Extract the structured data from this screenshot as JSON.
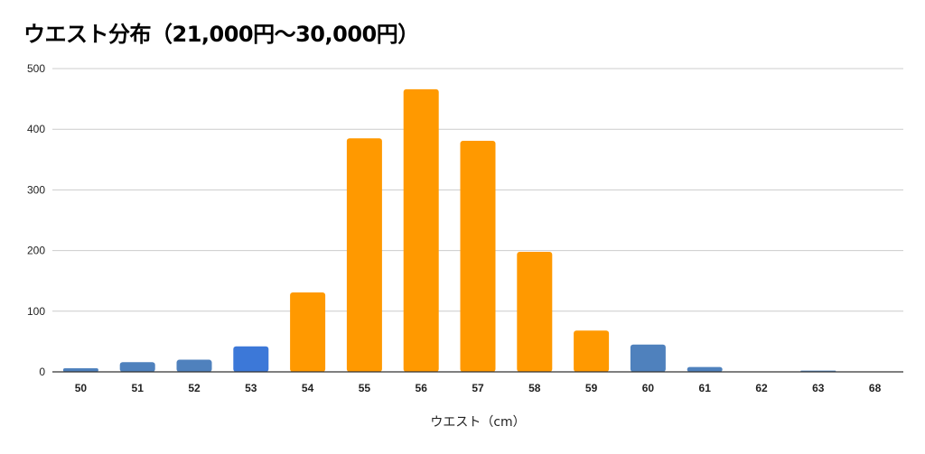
{
  "chart_data": {
    "type": "bar",
    "title": "ウエスト分布（21,000円〜30,000円）",
    "xlabel": "ウエスト（cm）",
    "ylabel": "",
    "ylim": [
      0,
      500
    ],
    "yticks": [
      "0",
      "100",
      "200",
      "300",
      "400",
      "500"
    ],
    "grid": true,
    "legend": "none",
    "categories": [
      "50",
      "51",
      "52",
      "53",
      "54",
      "55",
      "56",
      "57",
      "58",
      "59",
      "60",
      "61",
      "62",
      "63",
      "68"
    ],
    "values": [
      6,
      16,
      20,
      42,
      131,
      385,
      466,
      381,
      198,
      68,
      45,
      8,
      0,
      2,
      0
    ],
    "colors": [
      "#4f81bd",
      "#4f81bd",
      "#4f81bd",
      "#3c78d8",
      "#ff9900",
      "#ff9900",
      "#ff9900",
      "#ff9900",
      "#ff9900",
      "#ff9900",
      "#4f81bd",
      "#4f81bd",
      "#4f81bd",
      "#4f81bd",
      "#4f81bd"
    ]
  }
}
